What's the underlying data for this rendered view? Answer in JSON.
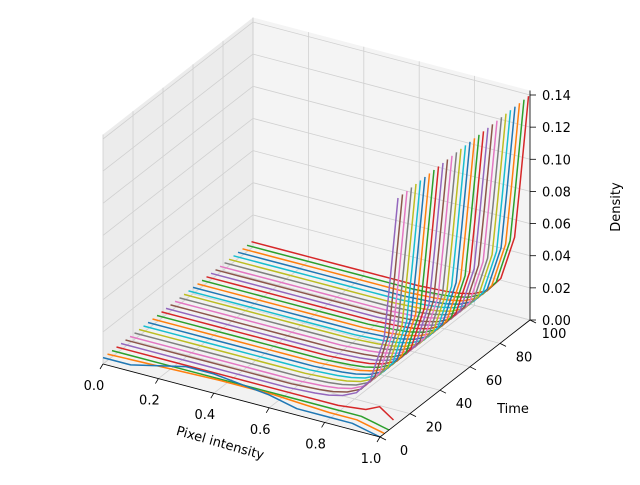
{
  "chart_data": {
    "type": "line",
    "projection": "3d",
    "title": "",
    "xlabel": "Pixel intensity",
    "ylabel": "Time",
    "zlabel": "Density",
    "xlim": [
      0.0,
      1.0
    ],
    "ylim": [
      0,
      100
    ],
    "zlim": [
      0.0,
      0.14
    ],
    "xticks": [
      "0.0",
      "0.2",
      "0.4",
      "0.6",
      "0.8",
      "1.0"
    ],
    "yticks": [
      "0",
      "20",
      "40",
      "60",
      "80",
      "100"
    ],
    "zticks": [
      "0.00",
      "0.02",
      "0.04",
      "0.06",
      "0.08",
      "0.10",
      "0.12",
      "0.14"
    ],
    "grid": true,
    "legend": "none",
    "series_count": 34,
    "time_values": [
      0,
      3,
      6,
      9,
      12,
      15,
      18,
      21,
      24,
      27,
      30,
      33,
      36,
      39,
      42,
      45,
      48,
      51,
      54,
      57,
      60,
      63,
      66,
      69,
      72,
      75,
      78,
      81,
      84,
      87,
      90,
      93,
      96,
      99
    ],
    "description_of_each_curve": {
      "x": [
        0.0,
        0.1,
        0.2,
        0.3,
        0.4,
        0.5,
        0.6,
        0.7,
        0.75,
        0.8,
        0.85,
        0.9,
        0.95,
        0.97,
        1.0
      ],
      "density_late": [
        0.004,
        0.004,
        0.004,
        0.004,
        0.004,
        0.004,
        0.004,
        0.005,
        0.006,
        0.008,
        0.012,
        0.022,
        0.05,
        0.085,
        0.14
      ]
    },
    "early_curves": [
      {
        "time": 0,
        "x": [
          0.0,
          0.1,
          0.2,
          0.3,
          0.4,
          0.5,
          0.6,
          0.7,
          0.8,
          0.9,
          1.0
        ],
        "density": [
          0.004,
          0.004,
          0.008,
          0.012,
          0.012,
          0.01,
          0.008,
          0.004,
          0.004,
          0.004,
          0.0
        ]
      },
      {
        "time": 3,
        "x": [
          0.0,
          0.2,
          0.4,
          0.6,
          0.7,
          0.8,
          0.9,
          1.0
        ],
        "density": [
          0.004,
          0.005,
          0.006,
          0.006,
          0.005,
          0.004,
          0.004,
          0.0
        ]
      },
      {
        "time": 6,
        "x": [
          0.0,
          0.2,
          0.4,
          0.6,
          0.8,
          0.9,
          0.95,
          1.0
        ],
        "density": [
          0.004,
          0.004,
          0.004,
          0.004,
          0.004,
          0.004,
          0.002,
          0.0
        ]
      },
      {
        "time": 9,
        "x": [
          0.0,
          0.2,
          0.4,
          0.6,
          0.8,
          0.9,
          0.95,
          1.0
        ],
        "density": [
          0.004,
          0.004,
          0.004,
          0.004,
          0.004,
          0.006,
          0.01,
          0.004
        ]
      }
    ],
    "colors": [
      "#1f77b4",
      "#ff7f0e",
      "#2ca02c",
      "#d62728",
      "#9467bd",
      "#8c564b",
      "#e377c2",
      "#7f7f7f",
      "#bcbd22",
      "#17becf"
    ]
  }
}
